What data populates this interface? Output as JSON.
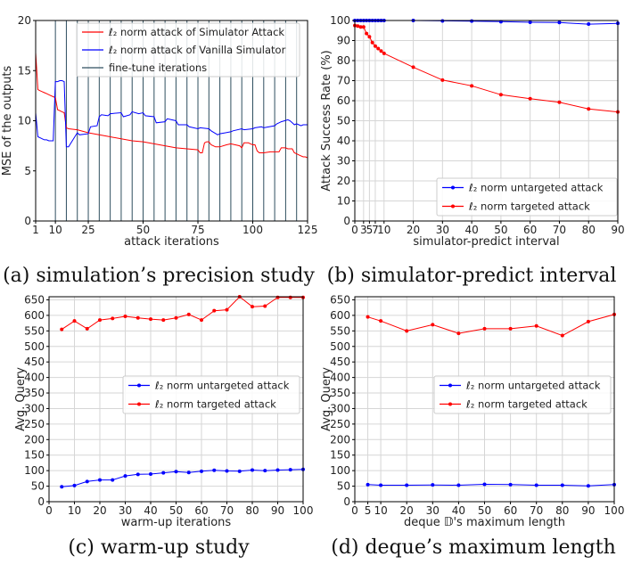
{
  "chart_data": [
    {
      "id": "a",
      "type": "line",
      "caption": "(a) simulation’s precision study",
      "xlabel": "attack iterations",
      "ylabel": "MSE of the outputs",
      "xlim": [
        1,
        125
      ],
      "ylim": [
        0,
        20
      ],
      "xticks": [
        1,
        10,
        25,
        50,
        75,
        100,
        125
      ],
      "yticks": [
        0,
        5,
        10,
        15,
        20
      ],
      "grid": false,
      "legend_position": "top-right",
      "series": [
        {
          "name": "ℓ₂ norm attack of Simulator Attack",
          "color": "#ff0000",
          "x": [
            1,
            2,
            3,
            4,
            5,
            6,
            7,
            8,
            9,
            10,
            11,
            12,
            13,
            14,
            15,
            16,
            20,
            25,
            30,
            35,
            40,
            45,
            50,
            55,
            60,
            65,
            70,
            75,
            76,
            77,
            78,
            79,
            80,
            81,
            82,
            83,
            84,
            85,
            88,
            90,
            94,
            95,
            96,
            97,
            98,
            99,
            100,
            101,
            102,
            103,
            104,
            105,
            108,
            110,
            112,
            113,
            114,
            115,
            116,
            117,
            118,
            119,
            120,
            121,
            122,
            123,
            124,
            125
          ],
          "values": [
            16.8,
            13.1,
            13.0,
            12.9,
            12.8,
            12.7,
            12.6,
            12.5,
            12.4,
            12.3,
            11.1,
            11.0,
            10.9,
            10.8,
            9.3,
            9.2,
            9.1,
            8.8,
            8.6,
            8.4,
            8.2,
            8.0,
            7.9,
            7.7,
            7.5,
            7.3,
            7.2,
            7.1,
            6.8,
            6.8,
            7.8,
            7.9,
            7.9,
            7.6,
            7.5,
            7.4,
            7.4,
            7.4,
            7.6,
            7.7,
            7.5,
            7.3,
            7.8,
            7.8,
            7.8,
            7.7,
            7.6,
            7.6,
            7.0,
            6.8,
            6.8,
            6.8,
            6.9,
            6.9,
            6.9,
            7.3,
            7.3,
            7.3,
            7.2,
            7.2,
            7.2,
            6.8,
            6.7,
            6.6,
            6.5,
            6.4,
            6.4,
            6.3
          ]
        },
        {
          "name": "ℓ₂ norm attack of Vanilla Simulator",
          "color": "#0000ff",
          "x": [
            1,
            2,
            3,
            4,
            5,
            6,
            7,
            8,
            9,
            10,
            11,
            12,
            13,
            14,
            15,
            16,
            20,
            21,
            25,
            26,
            29,
            30,
            31,
            34,
            35,
            40,
            41,
            44,
            45,
            48,
            50,
            51,
            55,
            56,
            60,
            61,
            65,
            66,
            70,
            71,
            75,
            76,
            80,
            81,
            84,
            85,
            90,
            91,
            95,
            96,
            100,
            101,
            104,
            105,
            110,
            111,
            112,
            113,
            116,
            117,
            118,
            119,
            120,
            121,
            122,
            123,
            125
          ],
          "values": [
            10.8,
            8.4,
            8.3,
            8.2,
            8.1,
            8.1,
            8.0,
            8.0,
            8.0,
            13.9,
            13.9,
            14.0,
            14.0,
            13.9,
            7.4,
            7.4,
            8.8,
            8.6,
            8.7,
            9.4,
            9.5,
            10.4,
            10.6,
            10.5,
            10.7,
            10.8,
            10.4,
            10.6,
            10.9,
            10.7,
            10.8,
            10.5,
            10.4,
            9.8,
            9.9,
            10.2,
            10.0,
            9.6,
            9.6,
            9.4,
            9.2,
            9.3,
            9.2,
            9.0,
            8.6,
            8.7,
            8.9,
            9.0,
            9.2,
            9.1,
            9.2,
            9.3,
            9.4,
            9.3,
            9.5,
            9.7,
            9.8,
            9.9,
            10.1,
            10.0,
            9.8,
            9.6,
            9.7,
            9.6,
            9.5,
            9.6,
            9.6
          ]
        }
      ],
      "finetune": {
        "name": "fine-tune iterations",
        "color": "#2f4f5f",
        "x": [
          10,
          15,
          20,
          25,
          30,
          35,
          40,
          45,
          50,
          55,
          60,
          65,
          70,
          75,
          80,
          85,
          90,
          95,
          100,
          105,
          110,
          115,
          120
        ]
      }
    },
    {
      "id": "b",
      "type": "line",
      "caption": "(b) simulator-predict interval",
      "xlabel": "simulator-predict interval",
      "ylabel": "Attack Success Rate (%)",
      "xlim": [
        0,
        90
      ],
      "ylim": [
        0,
        100
      ],
      "xticks": [
        0,
        3,
        5,
        7,
        10,
        20,
        30,
        40,
        50,
        60,
        70,
        80,
        90
      ],
      "xticklabels": [
        "0",
        "3",
        "5",
        "7",
        "10",
        "20",
        "30",
        "40",
        "50",
        "60",
        "70",
        "80",
        "90"
      ],
      "yticks": [
        0,
        10,
        20,
        30,
        40,
        50,
        60,
        70,
        80,
        90,
        100
      ],
      "grid": true,
      "legend_position": "bottom-right",
      "series": [
        {
          "name": "ℓ₂ norm untargeted attack",
          "color": "#0000ff",
          "x": [
            0,
            1,
            2,
            3,
            4,
            5,
            6,
            7,
            8,
            9,
            10,
            20,
            30,
            40,
            50,
            60,
            70,
            80,
            90
          ],
          "values": [
            100,
            100,
            100,
            100,
            100,
            100,
            100,
            100,
            100,
            100,
            100,
            100,
            99.8,
            99.7,
            99.4,
            99.1,
            99.0,
            98.2,
            98.6
          ]
        },
        {
          "name": "ℓ₂ norm targeted attack",
          "color": "#ff0000",
          "x": [
            0,
            1,
            2,
            3,
            4,
            5,
            6,
            7,
            8,
            9,
            10,
            20,
            30,
            40,
            50,
            60,
            70,
            80,
            90
          ],
          "values": [
            97.5,
            97.2,
            96.8,
            96.8,
            93.5,
            91.9,
            89.0,
            87.2,
            86.0,
            84.8,
            83.6,
            76.7,
            70.3,
            67.4,
            63.0,
            61.0,
            59.2,
            55.9,
            54.4
          ]
        }
      ]
    },
    {
      "id": "c",
      "type": "line",
      "caption": "(c) warm-up study",
      "xlabel": "warm-up iterations",
      "ylabel": "Avg. Query",
      "xlim": [
        0,
        100
      ],
      "ylim": [
        0,
        660
      ],
      "xticks": [
        0,
        10,
        20,
        30,
        40,
        50,
        60,
        70,
        80,
        90,
        100
      ],
      "yticks": [
        0,
        50,
        100,
        150,
        200,
        250,
        300,
        350,
        400,
        450,
        500,
        550,
        600,
        650
      ],
      "grid": true,
      "legend_position": "center-right",
      "series": [
        {
          "name": "ℓ₂ norm untargeted attack",
          "color": "#0000ff",
          "x": [
            5,
            10,
            15,
            20,
            25,
            30,
            35,
            40,
            45,
            50,
            55,
            60,
            65,
            70,
            75,
            80,
            85,
            90,
            95,
            100
          ],
          "values": [
            48,
            52,
            65,
            70,
            70,
            83,
            88,
            89,
            93,
            97,
            94,
            98,
            101,
            99,
            98,
            102,
            100,
            102,
            103,
            104
          ]
        },
        {
          "name": "ℓ₂ norm targeted attack",
          "color": "#ff0000",
          "x": [
            5,
            10,
            15,
            20,
            25,
            30,
            35,
            40,
            45,
            50,
            55,
            60,
            65,
            70,
            75,
            80,
            85,
            90,
            95,
            100
          ],
          "values": [
            555,
            582,
            557,
            585,
            590,
            597,
            592,
            588,
            585,
            592,
            603,
            585,
            615,
            618,
            660,
            628,
            630,
            658,
            658,
            658
          ]
        }
      ]
    },
    {
      "id": "d",
      "type": "line",
      "caption": "(d) deque’s maximum length",
      "xlabel": "deque 𝔻's maximum length",
      "ylabel": "Avg. Query",
      "xlim": [
        0,
        100
      ],
      "ylim": [
        0,
        660
      ],
      "xticks": [
        0,
        5,
        10,
        20,
        30,
        40,
        50,
        60,
        70,
        80,
        90,
        100
      ],
      "yticks": [
        0,
        50,
        100,
        150,
        200,
        250,
        300,
        350,
        400,
        450,
        500,
        550,
        600,
        650
      ],
      "grid": true,
      "legend_position": "center-right",
      "series": [
        {
          "name": "ℓ₂ norm untargeted attack",
          "color": "#0000ff",
          "x": [
            5,
            10,
            20,
            30,
            40,
            50,
            60,
            70,
            80,
            90,
            100
          ],
          "values": [
            55,
            53,
            53,
            54,
            53,
            56,
            55,
            53,
            53,
            51,
            55
          ]
        },
        {
          "name": "ℓ₂ norm targeted attack",
          "color": "#ff0000",
          "x": [
            5,
            10,
            20,
            30,
            40,
            50,
            60,
            70,
            80,
            90,
            100
          ],
          "values": [
            595,
            582,
            550,
            570,
            542,
            557,
            557,
            566,
            535,
            580,
            603
          ]
        }
      ]
    }
  ]
}
